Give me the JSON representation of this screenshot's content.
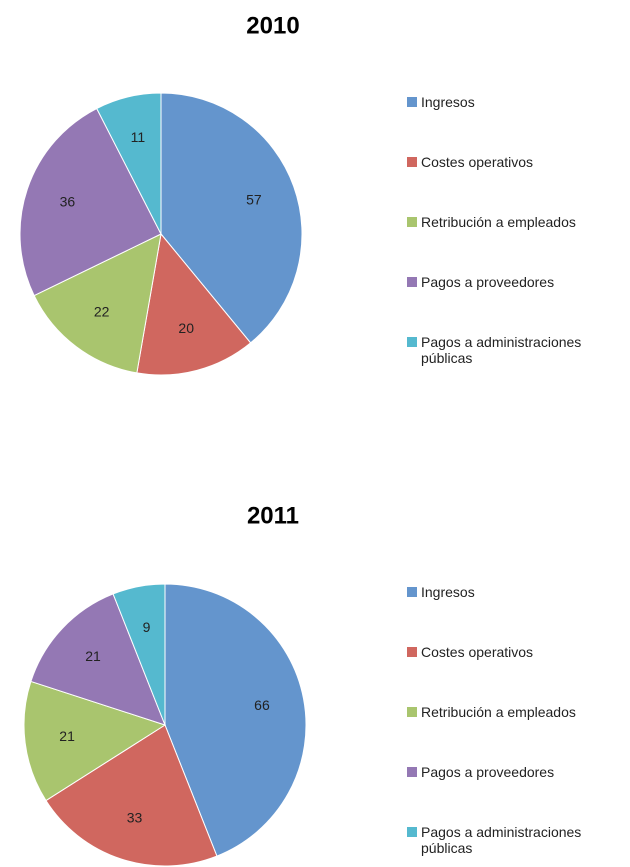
{
  "chart_data": [
    {
      "type": "pie",
      "title": "2010",
      "categories": [
        "Ingresos",
        "Costes operativos",
        "Retribución a empleados",
        "Pagos a proveedores",
        "Pagos a administraciones públicas"
      ],
      "values": [
        57,
        20,
        22,
        36,
        11
      ],
      "colors": [
        "#6495cd",
        "#d0675f",
        "#a9c56e",
        "#9478b4",
        "#55b9cf"
      ],
      "legend": "right"
    },
    {
      "type": "pie",
      "title": "2011",
      "categories": [
        "Ingresos",
        "Costes operativos",
        "Retribución a empleados",
        "Pagos a proveedores",
        "Pagos a administraciones públicas"
      ],
      "values": [
        66,
        33,
        21,
        21,
        9
      ],
      "colors": [
        "#6495cd",
        "#d0675f",
        "#a9c56e",
        "#9478b4",
        "#55b9cf"
      ],
      "legend": "right"
    }
  ]
}
